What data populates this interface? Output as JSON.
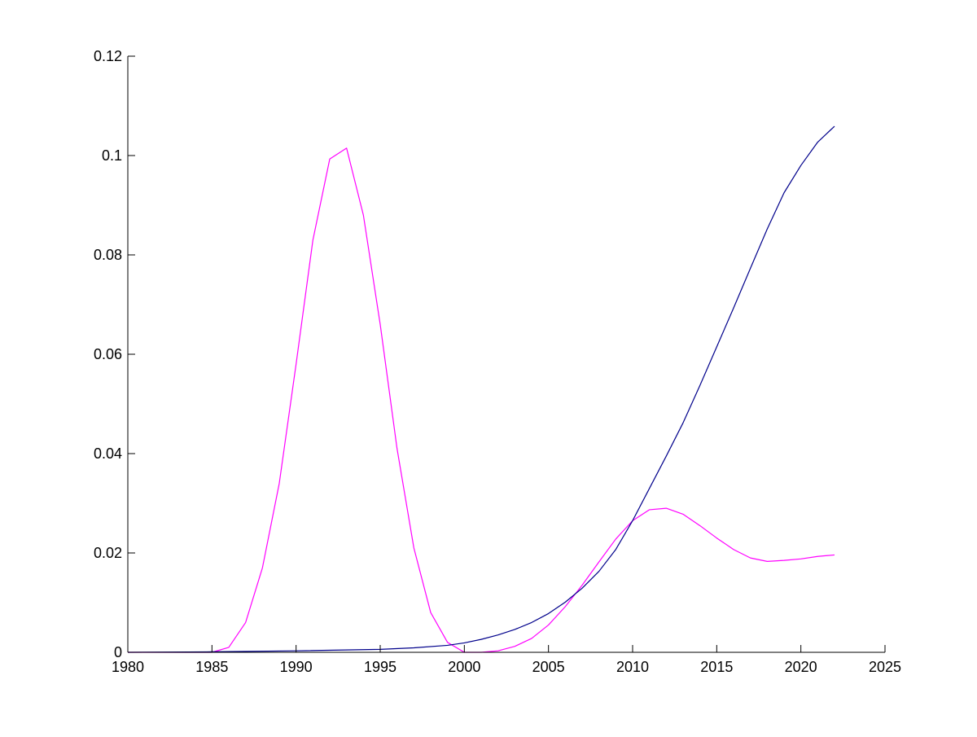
{
  "chart_data": {
    "type": "line",
    "title": "",
    "xlabel": "",
    "ylabel": "",
    "xlim": [
      1980,
      2025
    ],
    "ylim": [
      0,
      0.12
    ],
    "grid": false,
    "xticks": [
      1980,
      1985,
      1990,
      1995,
      2000,
      2005,
      2010,
      2015,
      2020,
      2025
    ],
    "yticks": [
      0,
      0.02,
      0.04,
      0.06,
      0.08,
      0.1,
      0.12
    ],
    "xtick_labels": [
      "1980",
      "1985",
      "1990",
      "1995",
      "2000",
      "2005",
      "2010",
      "2015",
      "2020",
      "2025"
    ],
    "ytick_labels": [
      "0",
      "0.02",
      "0.04",
      "0.06",
      "0.08",
      "0.1",
      "0.12"
    ],
    "series": [
      {
        "color": "#ff00ff",
        "x": [
          1980,
          1985,
          1986,
          1987,
          1988,
          1989,
          1990,
          1991,
          1992,
          1993,
          1994,
          1995,
          1996,
          1997,
          1998,
          1999,
          2000,
          2001,
          2002,
          2003,
          2004,
          2005,
          2006,
          2007,
          2008,
          2009,
          2010,
          2011,
          2012,
          2013,
          2014,
          2015,
          2016,
          2017,
          2018,
          2019,
          2020,
          2021,
          2022
        ],
        "y": [
          0,
          0,
          0.001,
          0.006,
          0.017,
          0.034,
          0.058,
          0.083,
          0.0993,
          0.1015,
          0.088,
          0.066,
          0.041,
          0.021,
          0.008,
          0.002,
          0,
          0,
          0.0003,
          0.0012,
          0.0028,
          0.0055,
          0.0092,
          0.0135,
          0.0182,
          0.0228,
          0.0265,
          0.0287,
          0.029,
          0.0278,
          0.0255,
          0.023,
          0.0207,
          0.019,
          0.0183,
          0.0185,
          0.0188,
          0.0193,
          0.0196
        ]
      },
      {
        "color": "#00008b",
        "x": [
          1980,
          1985,
          1990,
          1995,
          1997,
          1999,
          2000,
          2001,
          2002,
          2003,
          2004,
          2005,
          2006,
          2007,
          2008,
          2009,
          2010,
          2011,
          2012,
          2013,
          2014,
          2015,
          2016,
          2017,
          2018,
          2019,
          2020,
          2021,
          2022
        ],
        "y": [
          0,
          0.0001,
          0.0003,
          0.0006,
          0.0009,
          0.0014,
          0.0019,
          0.0026,
          0.0035,
          0.0046,
          0.006,
          0.0078,
          0.0101,
          0.0129,
          0.0163,
          0.0207,
          0.0265,
          0.033,
          0.0395,
          0.0462,
          0.0537,
          0.0615,
          0.0693,
          0.0773,
          0.0852,
          0.0925,
          0.098,
          0.1027,
          0.1059
        ]
      }
    ]
  }
}
